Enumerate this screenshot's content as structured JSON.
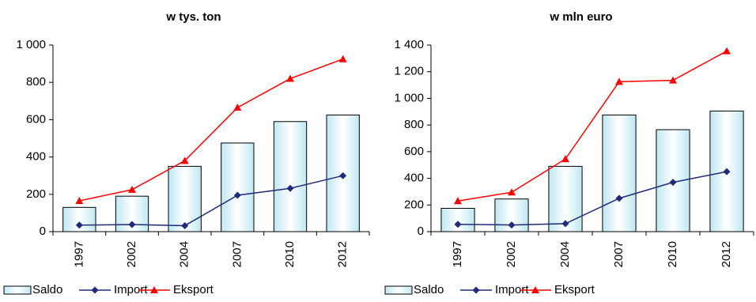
{
  "chart_data": [
    {
      "type": "combo",
      "title": "w tys. ton",
      "categories": [
        "1997",
        "2002",
        "2004",
        "2007",
        "2010",
        "2012"
      ],
      "ylim": [
        0,
        1000
      ],
      "yticks": [
        0,
        200,
        400,
        600,
        800,
        {
          "value": 1000,
          "label": "1 000"
        }
      ],
      "series": [
        {
          "name": "Saldo",
          "type": "bar",
          "color": "#bfe8f2",
          "values": [
            130,
            190,
            350,
            475,
            590,
            625
          ]
        },
        {
          "name": "Import",
          "type": "line",
          "marker": "diamond",
          "color": "#1f2a7a",
          "values": [
            35,
            38,
            32,
            195,
            232,
            300
          ]
        },
        {
          "name": "Eksport",
          "type": "line",
          "marker": "triangle",
          "color": "#ff0000",
          "values": [
            165,
            225,
            380,
            665,
            820,
            925
          ]
        }
      ]
    },
    {
      "type": "combo",
      "title": "w mln euro",
      "categories": [
        "1997",
        "2002",
        "2004",
        "2007",
        "2010",
        "2012"
      ],
      "ylim": [
        0,
        1400
      ],
      "yticks": [
        0,
        200,
        400,
        600,
        800,
        {
          "value": 1000,
          "label": "1 000"
        },
        {
          "value": 1200,
          "label": "1 200"
        },
        {
          "value": 1400,
          "label": "1 400"
        }
      ],
      "series": [
        {
          "name": "Saldo",
          "type": "bar",
          "color": "#bfe8f2",
          "values": [
            175,
            245,
            490,
            875,
            765,
            905
          ]
        },
        {
          "name": "Import",
          "type": "line",
          "marker": "diamond",
          "color": "#1f2a7a",
          "values": [
            55,
            50,
            60,
            250,
            370,
            450
          ]
        },
        {
          "name": "Eksport",
          "type": "line",
          "marker": "triangle",
          "color": "#ff0000",
          "values": [
            230,
            295,
            545,
            1125,
            1135,
            1355
          ]
        }
      ]
    }
  ]
}
